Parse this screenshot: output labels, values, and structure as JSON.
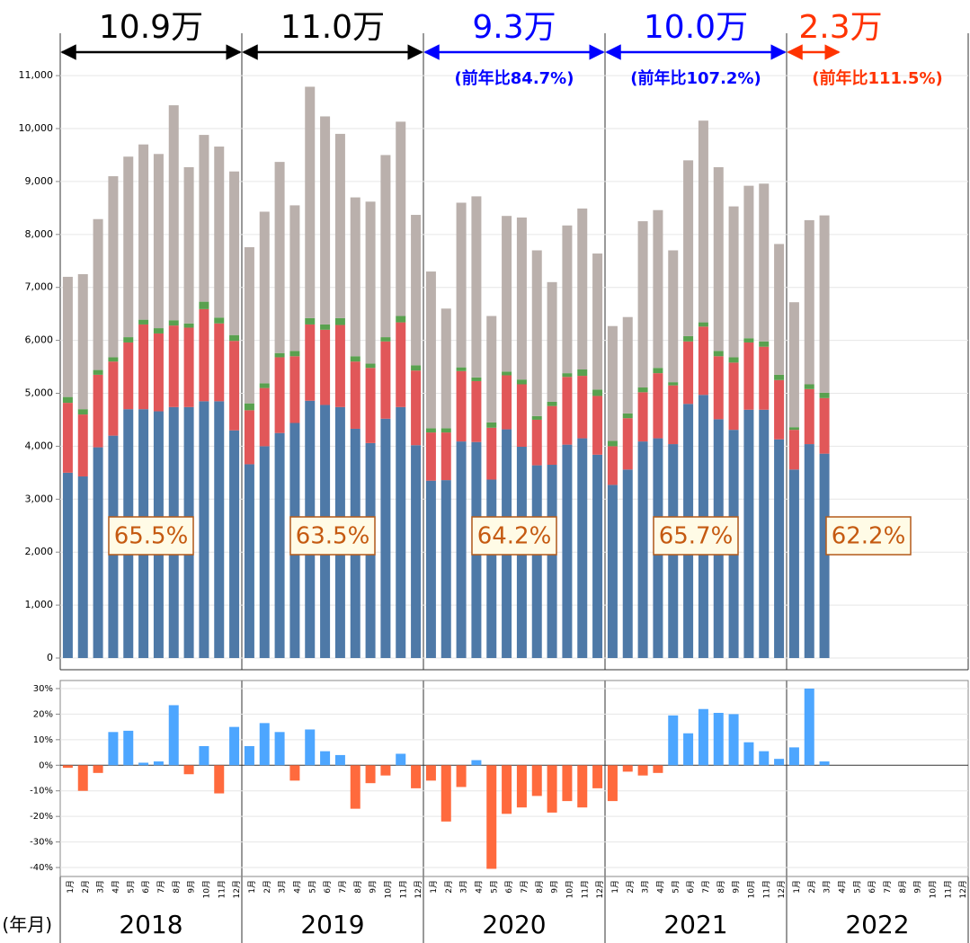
{
  "chart_data": [
    {
      "type": "stacked_bar",
      "categories": [
        "1月",
        "2月",
        "3月",
        "4月",
        "5月",
        "6月",
        "7月",
        "8月",
        "9月",
        "10月",
        "11月",
        "12月",
        "1月",
        "2月",
        "3月",
        "4月",
        "5月",
        "6月",
        "7月",
        "8月",
        "9月",
        "10月",
        "11月",
        "12月",
        "1月",
        "2月",
        "3月",
        "4月",
        "5月",
        "6月",
        "7月",
        "8月",
        "9月",
        "10月",
        "11月",
        "12月",
        "1月",
        "2月",
        "3月",
        "4月",
        "5月",
        "6月",
        "7月",
        "8月",
        "9月",
        "10月",
        "11月",
        "12月",
        "1月",
        "2月",
        "3月",
        "4月",
        "5月",
        "6月",
        "7月",
        "8月",
        "9月",
        "10月",
        "11月",
        "12月"
      ],
      "series": [
        {
          "color": "#4e79a7",
          "values": [
            3500,
            3430,
            3980,
            4200,
            4700,
            4700,
            4660,
            4740,
            4740,
            4850,
            4850,
            4300,
            3660,
            4000,
            4250,
            4440,
            4860,
            4780,
            4740,
            4330,
            4060,
            4520,
            4740,
            4020,
            3350,
            3360,
            4090,
            4080,
            3370,
            4320,
            3990,
            3640,
            3650,
            4030,
            4150,
            3840,
            3270,
            3560,
            4090,
            4150,
            4040,
            4800,
            4970,
            4510,
            4310,
            4690,
            4690,
            4130,
            3560,
            4040,
            3860,
            null,
            null,
            null,
            null,
            null,
            null,
            null,
            null,
            null
          ]
        },
        {
          "color": "#e15759",
          "values": [
            1320,
            1170,
            1370,
            1400,
            1260,
            1600,
            1470,
            1540,
            1500,
            1740,
            1470,
            1690,
            1020,
            1100,
            1430,
            1260,
            1440,
            1420,
            1550,
            1270,
            1420,
            1460,
            1600,
            1410,
            910,
            900,
            1330,
            1150,
            980,
            1020,
            1180,
            860,
            1110,
            1280,
            1180,
            1110,
            730,
            970,
            930,
            1230,
            1110,
            1180,
            1290,
            1190,
            1270,
            1270,
            1190,
            1120,
            750,
            1040,
            1050,
            null,
            null,
            null,
            null,
            null,
            null,
            null,
            null,
            null
          ]
        },
        {
          "color": "#59a14f",
          "values": [
            110,
            100,
            90,
            80,
            100,
            90,
            100,
            100,
            80,
            140,
            110,
            110,
            130,
            90,
            80,
            100,
            120,
            100,
            130,
            100,
            80,
            80,
            120,
            100,
            80,
            80,
            70,
            70,
            100,
            70,
            90,
            70,
            80,
            70,
            120,
            120,
            100,
            90,
            90,
            100,
            60,
            100,
            80,
            100,
            100,
            80,
            100,
            100,
            50,
            90,
            100,
            null,
            null,
            null,
            null,
            null,
            null,
            null,
            null,
            null
          ]
        },
        {
          "color": "#bab0ac",
          "values": [
            2270,
            2550,
            2850,
            3420,
            3410,
            3310,
            3290,
            4060,
            2950,
            3150,
            3230,
            3090,
            2950,
            3240,
            3610,
            2750,
            4370,
            3930,
            3480,
            3000,
            3060,
            3440,
            3670,
            2840,
            2960,
            2260,
            3110,
            3420,
            2010,
            2940,
            3060,
            3130,
            2260,
            2790,
            3040,
            2570,
            2170,
            1820,
            3140,
            2980,
            2490,
            3320,
            3810,
            3470,
            2850,
            2880,
            2980,
            2470,
            2360,
            3100,
            3350,
            null,
            null,
            null,
            null,
            null,
            null,
            null,
            null,
            null
          ]
        }
      ],
      "ylim": [
        0,
        11800
      ],
      "yticks": [
        0,
        {
          "value": 1000,
          "label": "1,000"
        },
        {
          "value": 2000,
          "label": "2,000"
        },
        {
          "value": 3000,
          "label": "3,000"
        },
        {
          "value": 4000,
          "label": "4,000"
        },
        {
          "value": 5000,
          "label": "5,000"
        },
        {
          "value": 6000,
          "label": "6,000"
        },
        {
          "value": 7000,
          "label": "7,000"
        },
        {
          "value": 8000,
          "label": "8,000"
        },
        {
          "value": 9000,
          "label": "9,000"
        },
        {
          "value": 10000,
          "label": "10,000"
        },
        {
          "value": 11000,
          "label": "11,000"
        }
      ],
      "grid": true,
      "period_notes": [
        {
          "total": "10.9万",
          "color": "#000000"
        },
        {
          "total": "11.0万",
          "color": "#000000"
        },
        {
          "total": "9.3万",
          "yoy": "(前年比84.7%)",
          "color": "#0000ff"
        },
        {
          "total": "10.0万",
          "yoy": "(前年比107.2%)",
          "color": "#0000ff"
        },
        {
          "total": "2.3万",
          "yoy": "(前年比111.5%)",
          "color": "#ff3300"
        }
      ],
      "ratio_labels": [
        "65.5%",
        "63.5%",
        "64.2%",
        "65.7%",
        "62.2%"
      ]
    },
    {
      "type": "bar",
      "categories": [
        "1月",
        "2月",
        "3月",
        "4月",
        "5月",
        "6月",
        "7月",
        "8月",
        "9月",
        "10月",
        "11月",
        "12月",
        "1月",
        "2月",
        "3月",
        "4月",
        "5月",
        "6月",
        "7月",
        "8月",
        "9月",
        "10月",
        "11月",
        "12月",
        "1月",
        "2月",
        "3月",
        "4月",
        "5月",
        "6月",
        "7月",
        "8月",
        "9月",
        "10月",
        "11月",
        "12月",
        "1月",
        "2月",
        "3月",
        "4月",
        "5月",
        "6月",
        "7月",
        "8月",
        "9月",
        "10月",
        "11月",
        "12月",
        "1月",
        "2月",
        "3月",
        "4月",
        "5月",
        "6月",
        "7月",
        "8月",
        "9月",
        "10月",
        "11月",
        "12月"
      ],
      "values": [
        -1,
        -10,
        -3,
        13,
        13.5,
        1,
        1.5,
        23.5,
        -3.5,
        7.5,
        -11,
        15,
        7.5,
        16.5,
        13,
        -6,
        14,
        5.5,
        4,
        -17,
        -7,
        -4,
        4.5,
        -9,
        -6,
        -22,
        -8.5,
        2,
        -40.5,
        -19,
        -16.5,
        -12,
        -18.5,
        -14,
        -16.5,
        -9,
        -14,
        -2.5,
        -4,
        -3,
        19.5,
        12.5,
        22,
        20.5,
        20,
        9,
        5.5,
        2.5,
        7,
        30,
        1.5,
        null,
        null,
        null,
        null,
        null,
        null,
        null,
        null,
        null
      ],
      "positive_color": "#4da6ff",
      "negative_color": "#ff6a3d",
      "ylim": [
        -43.5,
        32.1
      ],
      "yticks": [
        {
          "value": -40,
          "label": "-40%"
        },
        {
          "value": -30,
          "label": "-30%"
        },
        {
          "value": -20,
          "label": "-20%"
        },
        {
          "value": -10,
          "label": "-10%"
        },
        {
          "value": 0,
          "label": "0%"
        },
        {
          "value": 10,
          "label": "10%"
        },
        {
          "value": 20,
          "label": "20%"
        },
        {
          "value": 30,
          "label": "30%"
        }
      ],
      "grid": true,
      "year_labels": [
        "2018",
        "2019",
        "2020",
        "2021",
        "2022"
      ],
      "xlabel": "(年月)"
    }
  ]
}
